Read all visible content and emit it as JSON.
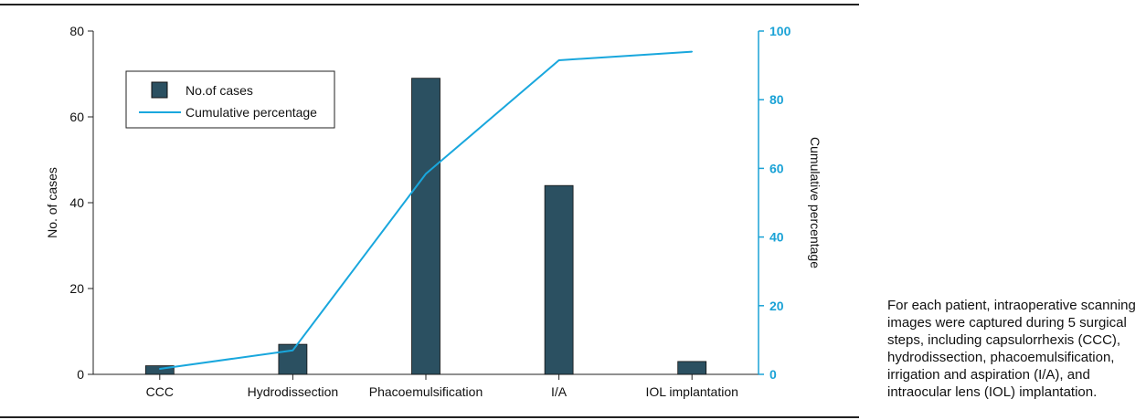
{
  "chart_data": {
    "type": "bar",
    "categories": [
      "CCC",
      "Hydrodissection",
      "Phacoemulsification",
      "I/A",
      "IOL implantation"
    ],
    "series": [
      {
        "name": "No.of cases",
        "type": "bar",
        "axis": "left",
        "values": [
          2,
          7,
          69,
          44,
          3
        ]
      },
      {
        "name": "Cumulative percentage",
        "type": "line",
        "axis": "right",
        "values": [
          1.6,
          7.0,
          58.4,
          91.5,
          94.0
        ]
      }
    ],
    "ylabel": "No. of cases",
    "ylim": [
      0,
      80
    ],
    "yticks": [
      0,
      20,
      40,
      60,
      80
    ],
    "y2label": "Cumulative percentage",
    "y2lim": [
      0,
      100
    ],
    "y2ticks": [
      0,
      20,
      40,
      60,
      80,
      100
    ],
    "grid": false,
    "legend": "top-left",
    "colors": {
      "bar": "#2b5061",
      "line": "#19a7dd",
      "right_axis": "#1aa2d6"
    }
  },
  "caption": "For each patient, intraoperative scanning images were captured during 5 surgical steps, including capsulorrhexis (CCC), hydrodissection, phacoemulsification, irrigation and aspiration (I/A), and intraocular lens (IOL) implantation."
}
